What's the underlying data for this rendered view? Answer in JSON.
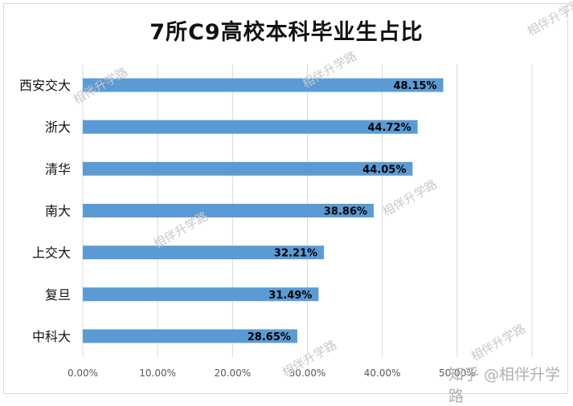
{
  "chart_data": {
    "type": "bar",
    "orientation": "horizontal",
    "title": "7所C9高校本科毕业生占比",
    "categories": [
      "西安交大",
      "浙大",
      "清华",
      "南大",
      "上交大",
      "复旦",
      "中科大"
    ],
    "values": [
      48.15,
      44.72,
      44.05,
      38.86,
      32.21,
      31.49,
      28.65
    ],
    "value_labels": [
      "48.15%",
      "44.72%",
      "44.05%",
      "38.86%",
      "32.21%",
      "31.49%",
      "28.65%"
    ],
    "xlim": [
      0,
      60
    ],
    "x_ticks": [
      0,
      10,
      20,
      30,
      40,
      50,
      60
    ],
    "x_tick_labels": [
      "0.00%",
      "10.00%",
      "20.00%",
      "30.00%",
      "40.00%",
      "50.00%",
      ""
    ],
    "grid": "vertical",
    "bar_color": "#5b9bd5",
    "legend": "none"
  },
  "watermarks": [
    "相伴升学路",
    "相伴升学路",
    "相伴升学路",
    "相伴升学路",
    "相伴升学路",
    "相伴升学路",
    "相伴升学路"
  ],
  "footer_watermark": "知乎 @相伴升学路"
}
